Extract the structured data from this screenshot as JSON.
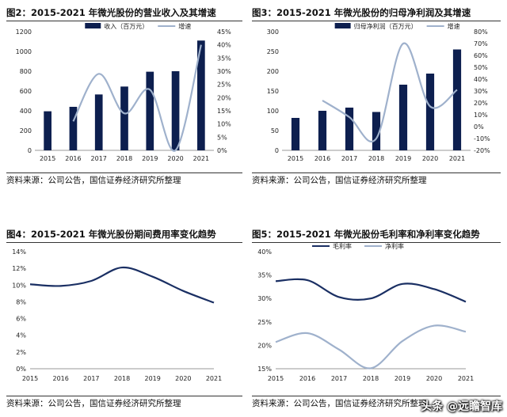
{
  "colors": {
    "bar": "#0d1f4f",
    "line": "#9fb1cc",
    "dark_line": "#1a2f63",
    "light_line": "#9fb1cc"
  },
  "source_text": "资料来源：公司公告，国信证券经济研究所整理",
  "watermark": "头条 @远瞻智库",
  "chart_data": [
    {
      "type": "bar",
      "title": "图2：2015-2021 年微光股份的营业收入及其增速",
      "categories": [
        "2015",
        "2016",
        "2017",
        "2018",
        "2019",
        "2020",
        "2021"
      ],
      "series": [
        {
          "name": "收入（百万元）",
          "type": "bar",
          "axis": "left",
          "values": [
            395,
            440,
            565,
            645,
            795,
            800,
            1110
          ]
        },
        {
          "name": "增速",
          "type": "line",
          "axis": "right",
          "values": [
            null,
            11,
            29,
            14,
            23,
            0,
            40
          ]
        }
      ],
      "y_left": {
        "min": 0,
        "max": 1200,
        "step": 200,
        "ticks": [
          "0",
          "200",
          "400",
          "600",
          "800",
          "1000",
          "1200"
        ]
      },
      "y_right": {
        "min": 0,
        "max": 45,
        "step": 5,
        "ticks": [
          "0%",
          "5%",
          "10%",
          "15%",
          "20%",
          "25%",
          "30%",
          "35%",
          "40%",
          "45%"
        ]
      },
      "legend": "top"
    },
    {
      "type": "bar",
      "title": "图3：2015-2021 年微光股份的归母净利润及其增速",
      "categories": [
        "2015",
        "2016",
        "2017",
        "2018",
        "2019",
        "2020",
        "2021"
      ],
      "series": [
        {
          "name": "归母净利润（百万元）",
          "type": "bar",
          "axis": "left",
          "values": [
            82,
            100,
            108,
            97,
            166,
            194,
            255
          ]
        },
        {
          "name": "增速",
          "type": "line",
          "axis": "right",
          "values": [
            null,
            22,
            8,
            -10,
            70,
            17,
            31
          ]
        }
      ],
      "y_left": {
        "min": 0,
        "max": 300,
        "step": 50,
        "ticks": [
          "0",
          "50",
          "100",
          "150",
          "200",
          "250",
          "300"
        ]
      },
      "y_right": {
        "min": -20,
        "max": 80,
        "step": 10,
        "ticks": [
          "-20%",
          "-10%",
          "0%",
          "10%",
          "20%",
          "30%",
          "40%",
          "50%",
          "60%",
          "70%",
          "80%"
        ]
      },
      "legend": "top"
    },
    {
      "type": "line",
      "title": "图4：2015-2021 年微光股份期间费用率变化趋势",
      "categories": [
        "2015",
        "2016",
        "2017",
        "2018",
        "2019",
        "2020",
        "2021"
      ],
      "series": [
        {
          "name": "",
          "values": [
            10.1,
            9.9,
            10.5,
            12.1,
            11.0,
            9.3,
            7.9
          ]
        }
      ],
      "y_left": {
        "min": 0,
        "max": 14,
        "step": 2,
        "ticks": [
          "0%",
          "2%",
          "4%",
          "6%",
          "8%",
          "10%",
          "12%",
          "14%"
        ]
      }
    },
    {
      "type": "line",
      "title": "图5：2015-2021 年微光股份毛利率和净利率变化趋势",
      "categories": [
        "2015",
        "2016",
        "2017",
        "2018",
        "2019",
        "2020",
        "2021"
      ],
      "series": [
        {
          "name": "毛利率",
          "values": [
            33.7,
            33.9,
            30.3,
            30.0,
            33.1,
            32.0,
            29.3
          ]
        },
        {
          "name": "净利率",
          "values": [
            20.7,
            22.6,
            19.1,
            15.1,
            20.9,
            24.2,
            22.9
          ]
        }
      ],
      "y_left": {
        "min": 15,
        "max": 40,
        "step": 5,
        "ticks": [
          "15%",
          "20%",
          "25%",
          "30%",
          "35%",
          "40%"
        ]
      },
      "legend": "top-left"
    }
  ]
}
